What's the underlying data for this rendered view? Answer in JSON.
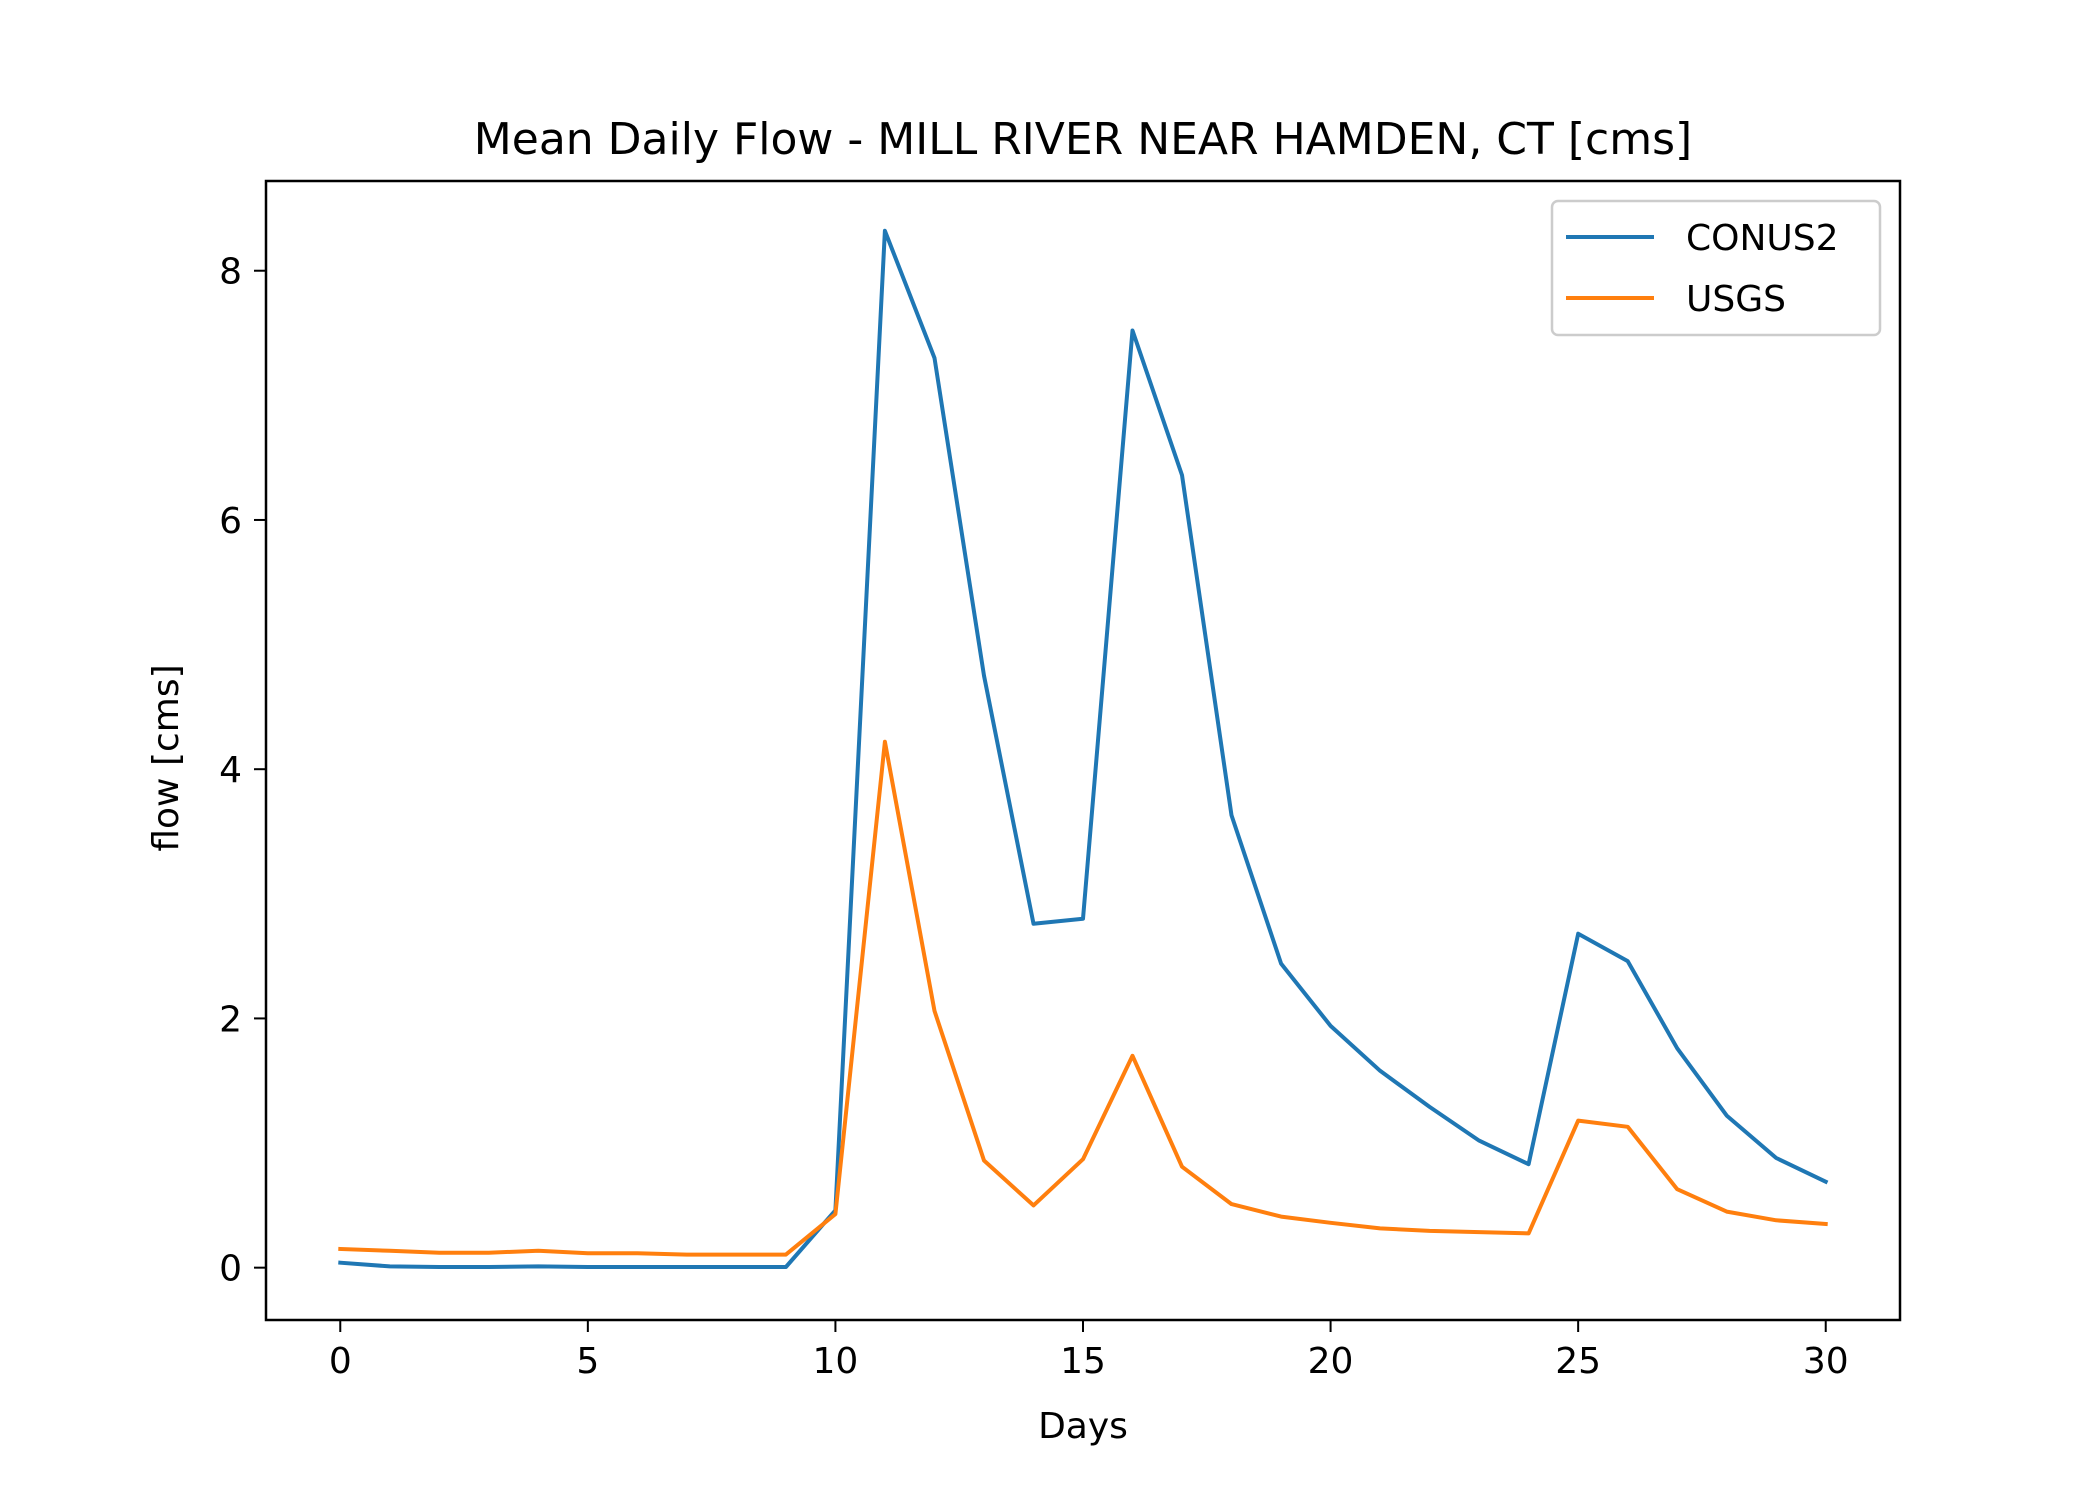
{
  "chart_data": {
    "type": "line",
    "title": "Mean Daily Flow - MILL RIVER NEAR HAMDEN, CT [cms]",
    "xlabel": "Days",
    "ylabel": "flow [cms]",
    "xlim": [
      -1.5,
      31.5
    ],
    "ylim": [
      -0.42,
      8.72
    ],
    "xticks": [
      0,
      5,
      10,
      15,
      20,
      25,
      30
    ],
    "yticks": [
      0,
      2,
      4,
      6,
      8
    ],
    "grid": false,
    "legend_position": "upper right",
    "x": [
      0,
      1,
      2,
      3,
      4,
      5,
      6,
      7,
      8,
      9,
      10,
      11,
      12,
      13,
      14,
      15,
      16,
      17,
      18,
      19,
      20,
      21,
      22,
      23,
      24,
      25,
      26,
      27,
      28,
      29,
      30
    ],
    "series": [
      {
        "name": "CONUS2",
        "color": "#1f77b4",
        "values": [
          0.04,
          0.01,
          0.005,
          0.005,
          0.01,
          0.005,
          0.005,
          0.005,
          0.005,
          0.005,
          0.46,
          8.32,
          7.3,
          4.75,
          2.76,
          2.8,
          7.52,
          6.36,
          3.63,
          2.44,
          1.94,
          1.58,
          1.29,
          1.02,
          0.83,
          2.68,
          2.46,
          1.76,
          1.22,
          0.88,
          0.69
        ]
      },
      {
        "name": "USGS",
        "color": "#ff7f0e",
        "values": [
          0.15,
          0.135,
          0.12,
          0.12,
          0.135,
          0.115,
          0.115,
          0.105,
          0.105,
          0.105,
          0.43,
          4.22,
          2.06,
          0.86,
          0.5,
          0.87,
          1.7,
          0.81,
          0.51,
          0.41,
          0.36,
          0.315,
          0.295,
          0.285,
          0.275,
          1.18,
          1.13,
          0.63,
          0.45,
          0.38,
          0.35
        ]
      }
    ]
  }
}
